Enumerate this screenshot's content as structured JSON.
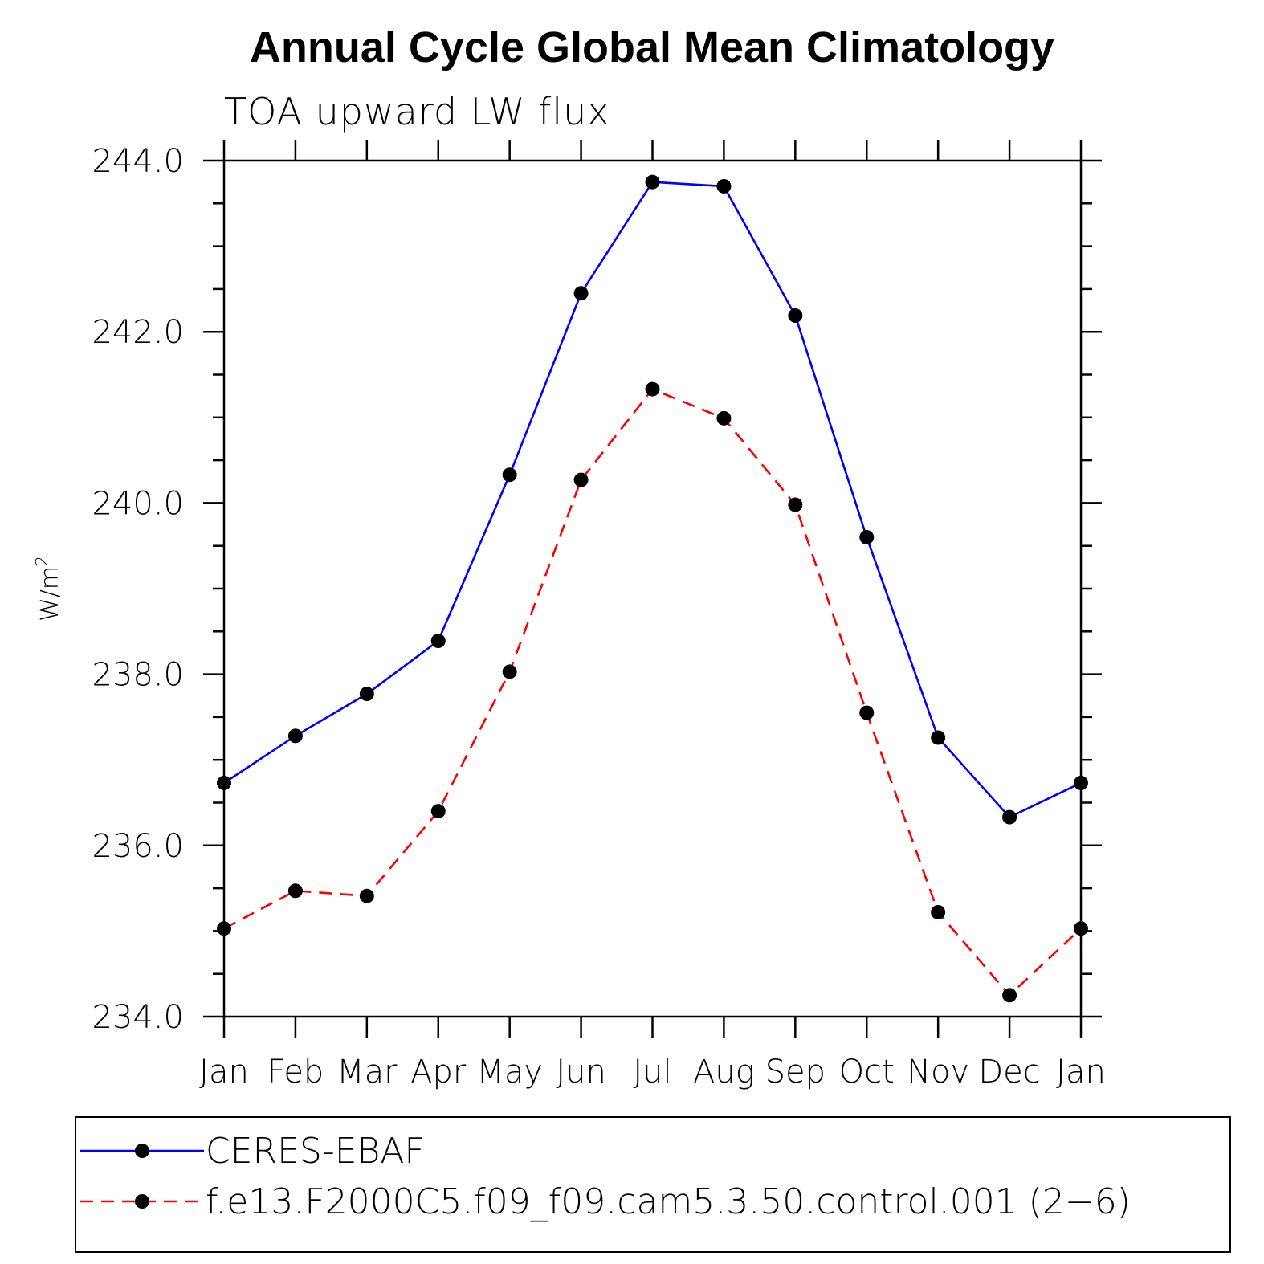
{
  "chart_data": {
    "type": "line",
    "title": "Annual Cycle Global Mean Climatology",
    "subtitle": "TOA upward LW flux",
    "ylabel": "W/m",
    "ylabel_superscript": "2",
    "xlabel": "",
    "categories": [
      "Jan",
      "Feb",
      "Mar",
      "Apr",
      "May",
      "Jun",
      "Jul",
      "Aug",
      "Sep",
      "Oct",
      "Nov",
      "Dec",
      "Jan"
    ],
    "ylim": [
      234.0,
      244.0
    ],
    "yticks": [
      234.0,
      236.0,
      238.0,
      240.0,
      242.0,
      244.0
    ],
    "ytick_labels": [
      "234.0",
      "236.0",
      "238.0",
      "240.0",
      "242.0",
      "244.0"
    ],
    "y_minor_step": 0.5,
    "grid": false,
    "legend_position": "bottom",
    "series": [
      {
        "name": "CERES-EBAF",
        "color": "#0000ff",
        "dash": "solid",
        "marker": "filled-circle",
        "values": [
          236.73,
          237.28,
          237.77,
          238.39,
          240.33,
          242.45,
          243.75,
          243.7,
          242.19,
          239.6,
          237.26,
          236.33,
          236.73
        ]
      },
      {
        "name": "f.e13.F2000C5.f09_f09.cam5.3.50.control.001 (2−6)",
        "color": "#ff0000",
        "dash": "dashed",
        "marker": "filled-circle",
        "values": [
          235.03,
          235.47,
          235.41,
          236.4,
          238.03,
          240.27,
          241.33,
          240.99,
          239.98,
          237.55,
          235.22,
          234.25,
          235.03
        ]
      }
    ]
  }
}
